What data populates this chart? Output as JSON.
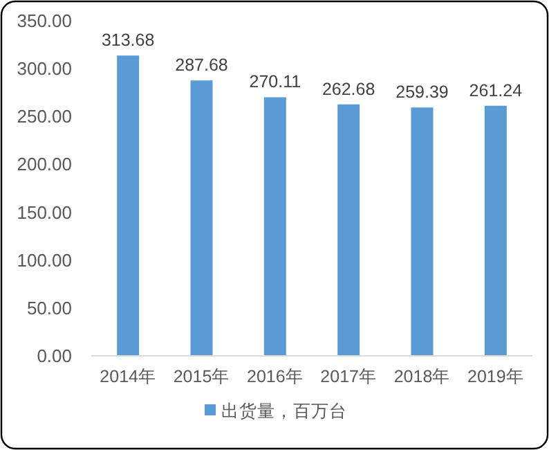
{
  "chart_data": {
    "type": "bar",
    "categories": [
      "2014年",
      "2015年",
      "2016年",
      "2017年",
      "2018年",
      "2019年"
    ],
    "series": [
      {
        "name": "出货量，百万台",
        "color": "#5b9bd5",
        "values": [
          313.68,
          287.68,
          270.11,
          262.68,
          259.39,
          261.24
        ]
      }
    ],
    "ylim": [
      0,
      350
    ],
    "yticks": [
      {
        "value": 0,
        "label": "0.00"
      },
      {
        "value": 50,
        "label": "50.00"
      },
      {
        "value": 100,
        "label": "100.00"
      },
      {
        "value": 150,
        "label": "150.00"
      },
      {
        "value": 200,
        "label": "200.00"
      },
      {
        "value": 250,
        "label": "250.00"
      },
      {
        "value": 300,
        "label": "300.00"
      },
      {
        "value": 350,
        "label": "350.00"
      }
    ],
    "data_labels": true,
    "grid": false,
    "legend": "bottom"
  }
}
